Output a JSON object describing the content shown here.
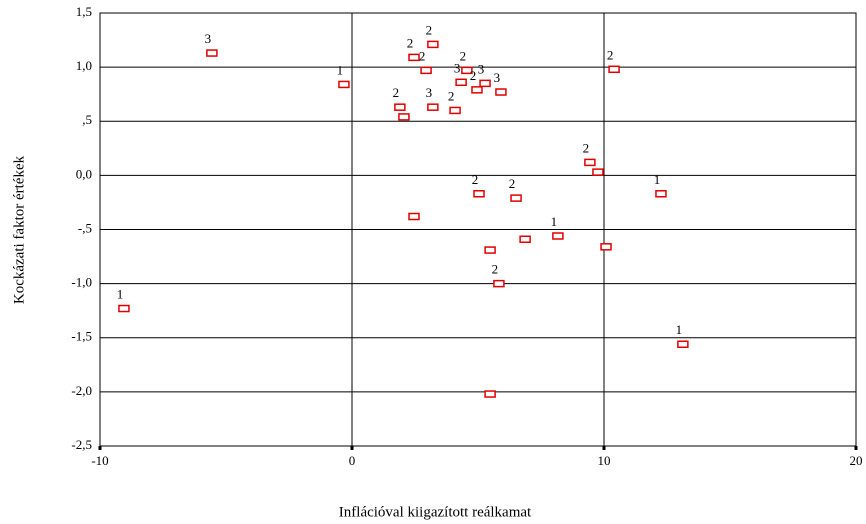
{
  "chart_data": {
    "type": "scatter",
    "xlabel": "Inflációval kiigazított reálkamat",
    "ylabel": "Kockázati faktor értékek",
    "x": [
      -5.56,
      -0.32,
      -9.05,
      3.21,
      2.46,
      2.94,
      4.56,
      4.33,
      4.96,
      5.28,
      5.91,
      1.9,
      2.06,
      3.21,
      4.09,
      10.4,
      9.44,
      9.76,
      5.04,
      6.51,
      12.26,
      2.46,
      8.17,
      6.87,
      5.48,
      10.08,
      5.83,
      13.13,
      5.48
    ],
    "y": [
      1.13,
      0.84,
      -1.23,
      1.21,
      1.09,
      0.97,
      0.97,
      0.86,
      0.79,
      0.85,
      0.77,
      0.63,
      0.54,
      0.63,
      0.6,
      0.98,
      0.12,
      0.03,
      -0.17,
      -0.21,
      -0.17,
      -0.38,
      -0.56,
      -0.59,
      -0.69,
      -0.66,
      -1.0,
      -1.56,
      -2.02
    ],
    "point_labels": [
      "3",
      "1",
      "1",
      "2",
      "2",
      "2",
      "2",
      "3",
      "2",
      "3",
      "3",
      "2",
      null,
      "3",
      "2",
      "2",
      "2",
      null,
      "2",
      "2",
      "1",
      null,
      "1",
      null,
      null,
      null,
      "2",
      "1",
      null
    ],
    "color": "#e00000",
    "xlim": [
      -10,
      20
    ],
    "xticks": [
      -10,
      0,
      10,
      20
    ],
    "ylim": [
      -2.5,
      1.5
    ],
    "yticks": [
      {
        "value": 1.5,
        "label": "1,5"
      },
      {
        "value": 1.0,
        "label": "1,0"
      },
      {
        "value": 0.5,
        "label": ",5"
      },
      {
        "value": 0.0,
        "label": "0,0"
      },
      {
        "value": -0.5,
        "label": "-,5"
      },
      {
        "value": -1.0,
        "label": "-1,0"
      },
      {
        "value": -1.5,
        "label": "-1,5"
      },
      {
        "value": -2.0,
        "label": "-2,0"
      },
      {
        "value": -2.5,
        "label": "-2,5"
      }
    ],
    "grid": true
  }
}
